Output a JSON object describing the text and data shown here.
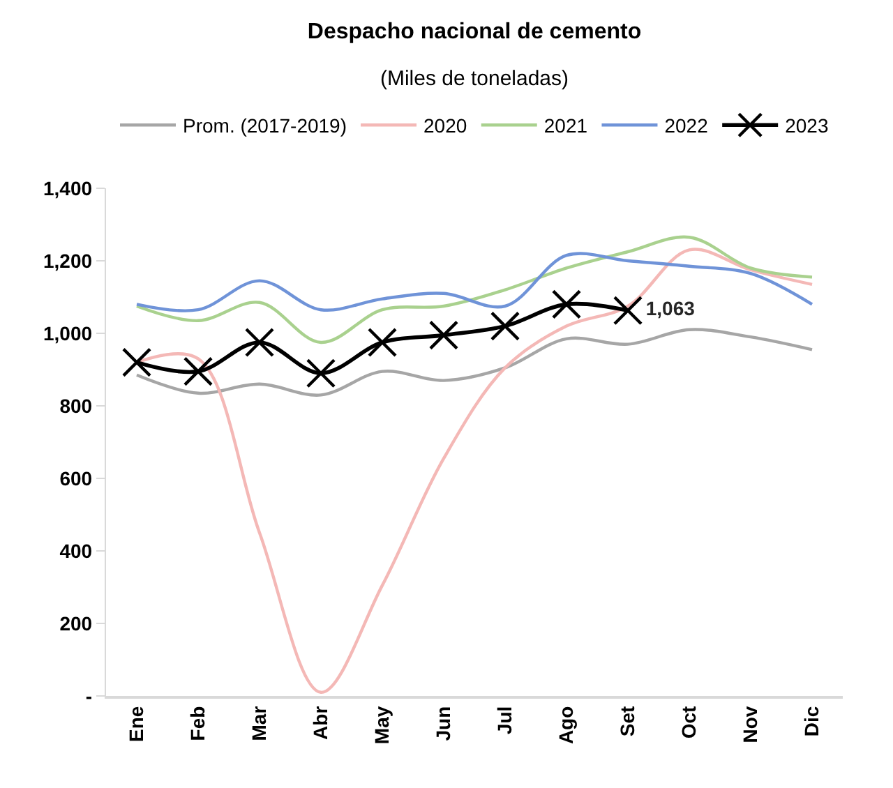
{
  "chart_data": {
    "type": "line",
    "title": "Despacho nacional de cemento",
    "subtitle": "(Miles de toneladas)",
    "categories": [
      "Ene",
      "Feb",
      "Mar",
      "Abr",
      "May",
      "Jun",
      "Jul",
      "Ago",
      "Set",
      "Oct",
      "Nov",
      "Dic"
    ],
    "series": [
      {
        "name": "Prom. (2017-2019)",
        "color": "#a6a6a6",
        "values": [
          885,
          835,
          860,
          830,
          895,
          870,
          905,
          985,
          970,
          1010,
          990,
          955
        ]
      },
      {
        "name": "2020",
        "color": "#f4b8b6",
        "values": [
          920,
          930,
          450,
          10,
          305,
          655,
          905,
          1020,
          1075,
          1230,
          1175,
          1135
        ]
      },
      {
        "name": "2021",
        "color": "#a9d18e",
        "values": [
          1075,
          1035,
          1085,
          975,
          1065,
          1075,
          1120,
          1180,
          1225,
          1265,
          1180,
          1155
        ]
      },
      {
        "name": "2022",
        "color": "#6f93d8",
        "values": [
          1080,
          1065,
          1145,
          1065,
          1095,
          1110,
          1075,
          1215,
          1200,
          1185,
          1165,
          1080
        ]
      },
      {
        "name": "2023",
        "color": "#000000",
        "marker": "cross",
        "values": [
          920,
          895,
          975,
          890,
          975,
          995,
          1020,
          1080,
          1063,
          null,
          null,
          null
        ],
        "value_labels": [
          null,
          null,
          null,
          null,
          null,
          null,
          null,
          null,
          "1,063",
          null,
          null,
          null
        ]
      }
    ],
    "ylim": [
      0,
      1400
    ],
    "yticks": [
      {
        "value": 0,
        "label": "-"
      },
      200,
      400,
      600,
      800,
      {
        "value": 1000,
        "label": "1,000"
      },
      {
        "value": 1200,
        "label": "1,200"
      },
      {
        "value": 1400,
        "label": "1,400"
      }
    ],
    "legend": "top"
  }
}
